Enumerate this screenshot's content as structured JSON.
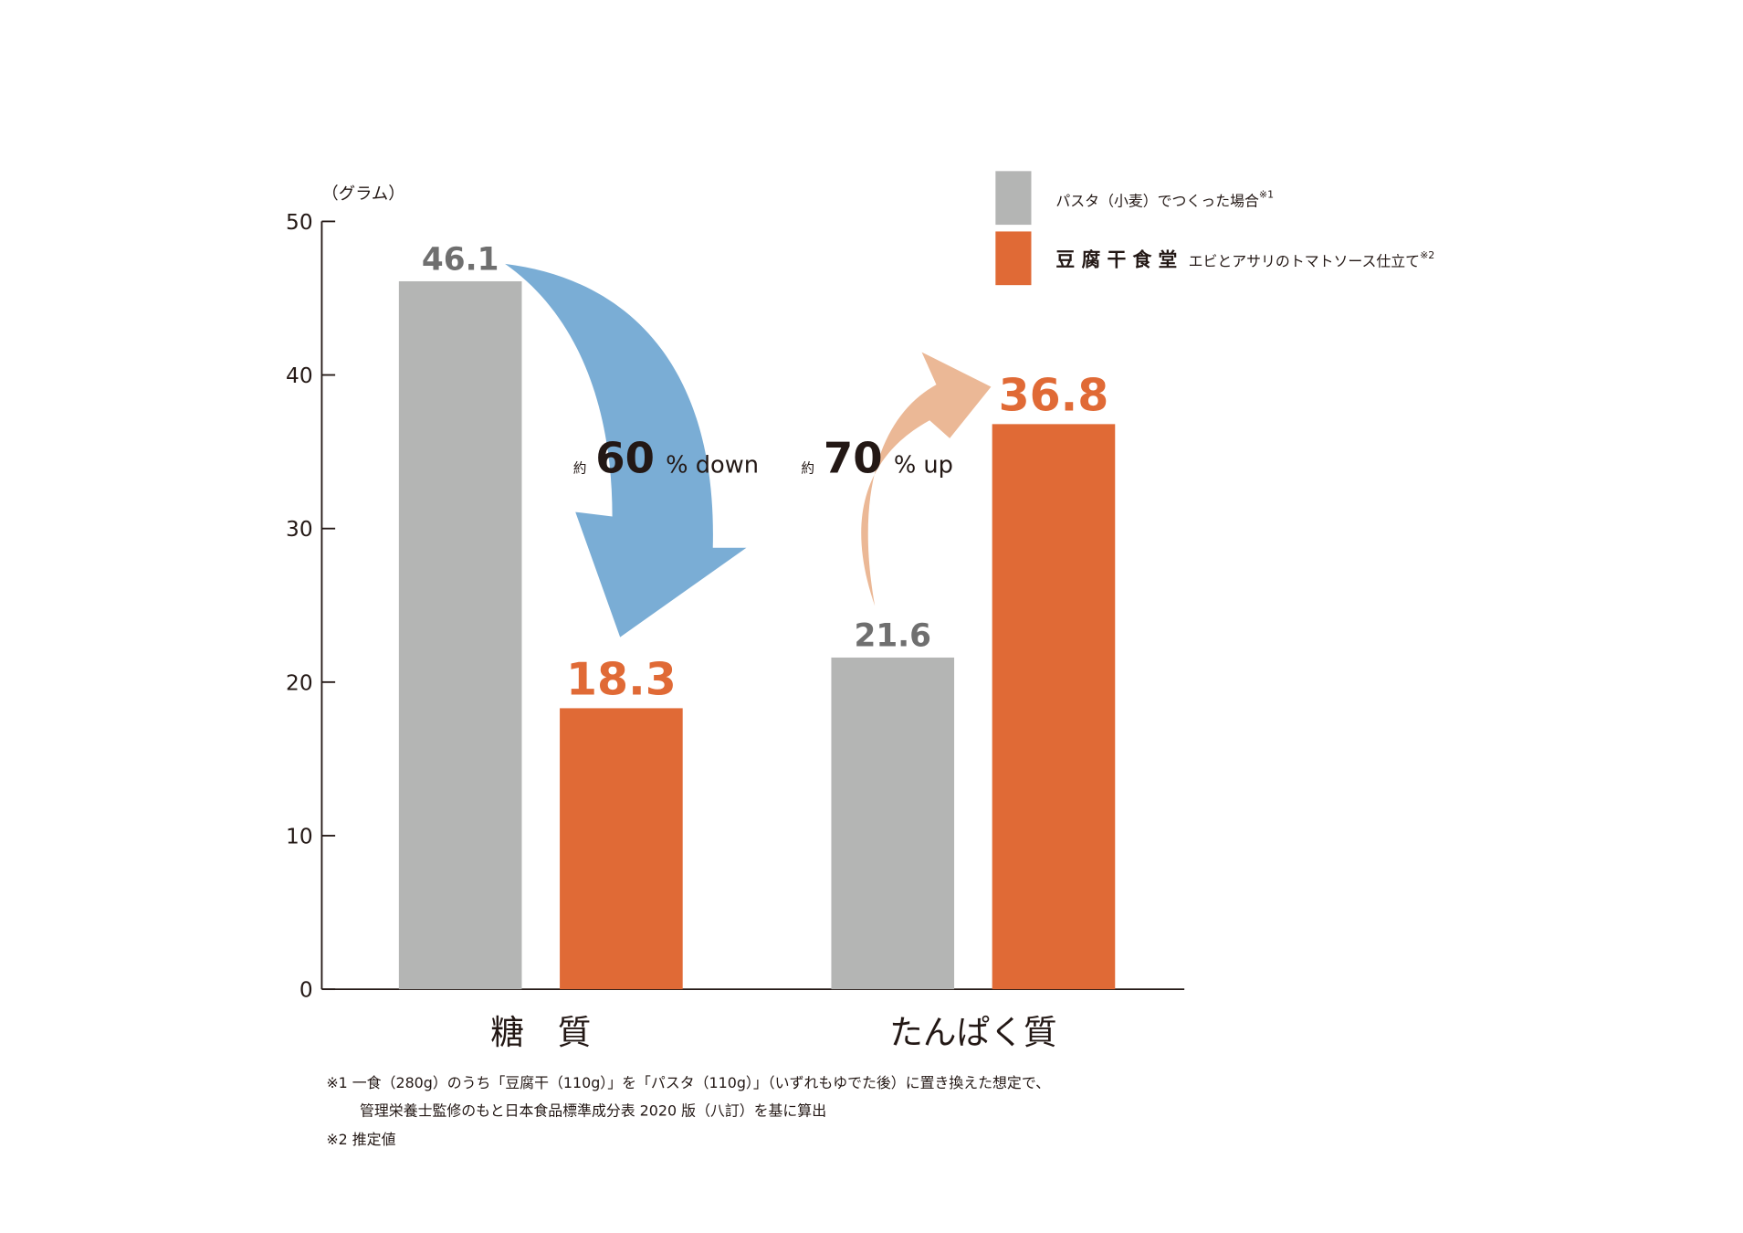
{
  "chart_data": {
    "type": "bar",
    "y_label": "（グラム）",
    "categories": [
      "糖　質",
      "たんぱく質"
    ],
    "series": [
      {
        "name": "パスタ（小麦）でつくった場合",
        "note": "※1",
        "color": "#b4b5b4",
        "label_color": "#6f6f6f",
        "values": [
          46.1,
          21.6
        ]
      },
      {
        "name": "豆 腐 干 食 堂",
        "subtitle": "エビとアサリのトマトソース仕立て",
        "note": "※2",
        "color": "#e06a36",
        "label_color": "#e06a36",
        "values": [
          18.3,
          36.8
        ]
      }
    ],
    "ylim": [
      0,
      50
    ],
    "yticks": [
      0,
      10,
      20,
      30,
      40,
      50
    ],
    "annotations": [
      {
        "prefix": "約",
        "value": "60",
        "suffix": "% down"
      },
      {
        "prefix": "約",
        "value": "70",
        "suffix": "% up"
      }
    ],
    "footnotes": [
      "※1  一食（280g）のうち「豆腐干（110g）」を「パスタ（110g）」（いずれもゆでた後）に置き換えた想定で、",
      "管理栄養士監修のもと日本食品標準成分表 2020 版（八訂）を基に算出",
      "※2  推定値"
    ]
  }
}
